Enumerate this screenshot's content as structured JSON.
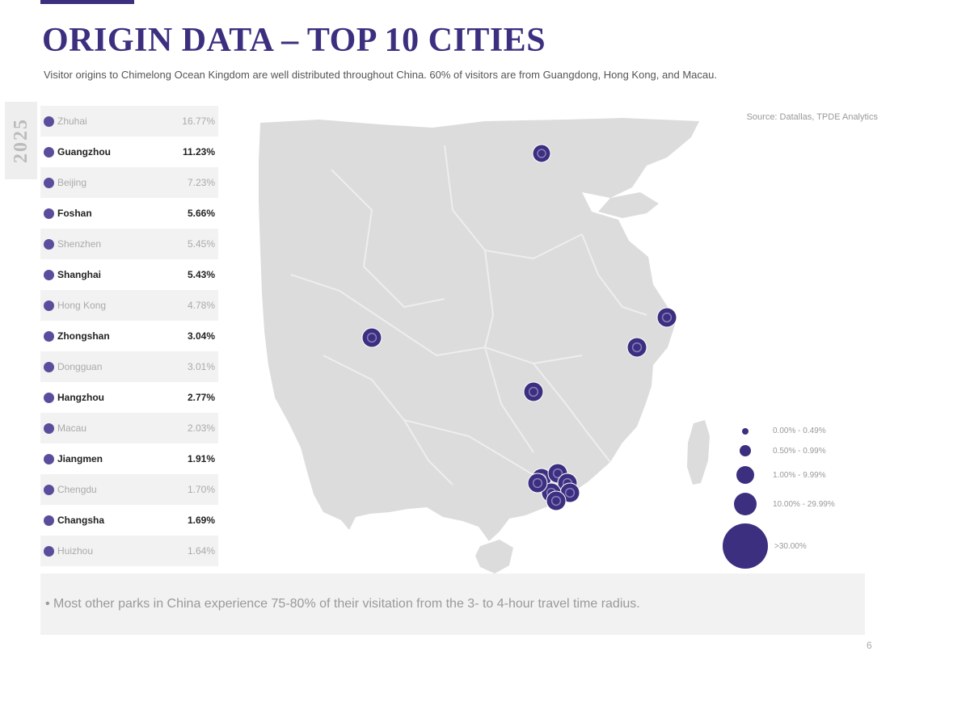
{
  "header": {
    "title": "ORIGIN DATA – TOP 10 CITIES",
    "subtitle": "Visitor origins to Chimelong Ocean Kingdom are well distributed throughout China. 60% of visitors are from Guangdong, Hong Kong, and Macau."
  },
  "side_logo": {
    "text": "2025"
  },
  "city_list": [
    {
      "name": "Zhuhai",
      "pct": "16.77%",
      "bold": false
    },
    {
      "name": "Guangzhou",
      "pct": "11.23%",
      "bold": true
    },
    {
      "name": "Beijing",
      "pct": "7.23%",
      "bold": false
    },
    {
      "name": "Foshan",
      "pct": "5.66%",
      "bold": true
    },
    {
      "name": "Shenzhen",
      "pct": "5.45%",
      "bold": false
    },
    {
      "name": "Shanghai",
      "pct": "5.43%",
      "bold": true
    },
    {
      "name": "Hong Kong",
      "pct": "4.78%",
      "bold": false
    },
    {
      "name": "Zhongshan",
      "pct": "3.04%",
      "bold": true
    },
    {
      "name": "Dongguan",
      "pct": "3.01%",
      "bold": false
    },
    {
      "name": "Hangzhou",
      "pct": "2.77%",
      "bold": true
    },
    {
      "name": "Macau",
      "pct": "2.03%",
      "bold": false
    },
    {
      "name": "Jiangmen",
      "pct": "1.91%",
      "bold": true
    },
    {
      "name": "Chengdu",
      "pct": "1.70%",
      "bold": false
    },
    {
      "name": "Changsha",
      "pct": "1.69%",
      "bold": true
    },
    {
      "name": "Huizhou",
      "pct": "1.64%",
      "bold": false
    }
  ],
  "source": "Source: Datallas, TPDE Analytics",
  "map": {
    "markers": [
      {
        "city": "Beijing"
      },
      {
        "city": "Shanghai"
      },
      {
        "city": "Hangzhou"
      },
      {
        "city": "Chengdu"
      },
      {
        "city": "Changsha"
      },
      {
        "city": "Guangzhou"
      },
      {
        "city": "Foshan"
      },
      {
        "city": "Dongguan"
      },
      {
        "city": "Huizhou"
      },
      {
        "city": "Zhongshan"
      },
      {
        "city": "Shenzhen"
      },
      {
        "city": "Zhuhai"
      }
    ]
  },
  "legend": [
    {
      "label": "0.00% - 0.49%"
    },
    {
      "label": "0.50% - 0.99%"
    },
    {
      "label": "1.00% - 9.99%"
    },
    {
      "label": "10.00% - 29.99%"
    },
    {
      "label": ">30.00%"
    }
  ],
  "note": "• Most other parks in China experience 75-80% of their visitation from the 3- to 4-hour travel time radius.",
  "page_number": "6",
  "colors": {
    "accent": "#3d2f7f",
    "land": "#dcdcdc",
    "water": "#ffffff",
    "panel": "#f2f2f2"
  }
}
